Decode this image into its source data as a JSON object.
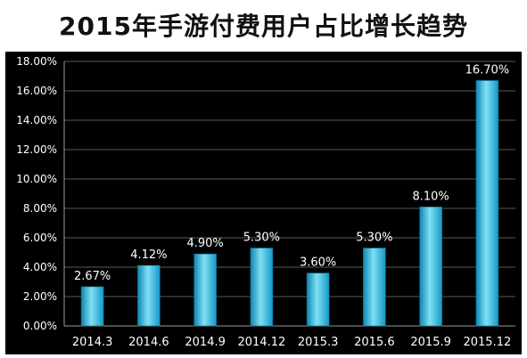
{
  "title": "2015年手游付费用户占比增长趋势",
  "chart_data": {
    "type": "bar",
    "title": "2015年手游付费用户占比增长趋势",
    "categories": [
      "2014.3",
      "2014.6",
      "2014.9",
      "2014.12",
      "2015.3",
      "2015.6",
      "2015.9",
      "2015.12"
    ],
    "values": [
      2.67,
      4.12,
      4.9,
      5.3,
      3.6,
      5.3,
      8.1,
      16.7
    ],
    "value_labels": [
      "2.67%",
      "4.12%",
      "4.90%",
      "5.30%",
      "3.60%",
      "5.30%",
      "8.10%",
      "16.70%"
    ],
    "y_ticks": [
      0,
      2,
      4,
      6,
      8,
      10,
      12,
      14,
      16,
      18
    ],
    "y_tick_labels": [
      "0.00%",
      "2.00%",
      "4.00%",
      "6.00%",
      "8.00%",
      "10.00%",
      "12.00%",
      "14.00%",
      "16.00%",
      "18.00%"
    ],
    "ylim": [
      0,
      18
    ],
    "xlabel": "",
    "ylabel": "",
    "grid": true,
    "colors": {
      "bar_light": "#7fe0f5",
      "bar_mid": "#25b6de",
      "bar_dark": "#0e86b3",
      "background": "#000000",
      "gridline": "#5a5a5a",
      "text": "#ffffff"
    }
  }
}
